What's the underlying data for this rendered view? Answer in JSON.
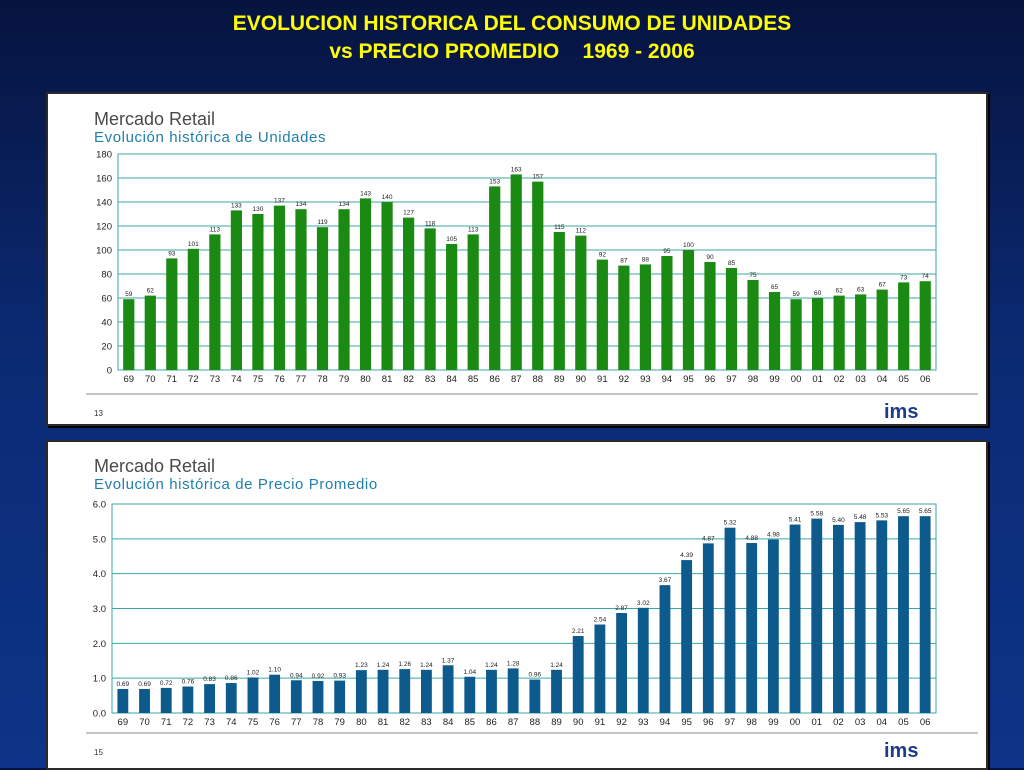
{
  "slide": {
    "title_line1": "EVOLUCION HISTORICA DEL CONSUMO DE UNIDADES",
    "title_line2": "vs PRECIO PROMEDIO    1969 - 2006"
  },
  "colors": {
    "background": "#0b2a73",
    "title": "#ffff00",
    "units_bar": "#1a8a12",
    "price_bar": "#0d5a8c",
    "panel_heading": "#4a4a4a",
    "panel_subheading": "#1f7fa8",
    "grid": "#3aa6a6",
    "logo": "#1f3c8c"
  },
  "chart_data": [
    {
      "type": "bar",
      "heading": "Mercado Retail",
      "title": "Evolución histórica de Unidades",
      "categories": [
        "69",
        "70",
        "71",
        "72",
        "73",
        "74",
        "75",
        "76",
        "77",
        "78",
        "79",
        "80",
        "81",
        "82",
        "83",
        "84",
        "85",
        "86",
        "87",
        "88",
        "89",
        "90",
        "91",
        "92",
        "93",
        "94",
        "95",
        "96",
        "97",
        "98",
        "99",
        "00",
        "01",
        "02",
        "03",
        "04",
        "05",
        "06"
      ],
      "values": [
        59,
        62,
        93,
        101,
        113,
        133,
        130,
        137,
        134,
        119,
        134,
        143,
        140,
        127,
        118,
        105,
        113,
        153,
        163,
        157,
        115,
        112,
        92,
        87,
        88,
        95,
        100,
        90,
        85,
        75,
        65,
        59,
        60,
        62,
        63,
        67,
        73,
        74
      ],
      "ylim": [
        0,
        180
      ],
      "yticks": [
        "0",
        "20",
        "40",
        "60",
        "80",
        "100",
        "120",
        "140",
        "160",
        "180"
      ],
      "grid": true,
      "footnote": "13",
      "logo": "ims"
    },
    {
      "type": "bar",
      "heading": "Mercado Retail",
      "title": "Evolución histórica de Precio Promedio",
      "categories": [
        "69",
        "70",
        "71",
        "72",
        "73",
        "74",
        "75",
        "76",
        "77",
        "78",
        "79",
        "80",
        "81",
        "82",
        "83",
        "84",
        "85",
        "86",
        "87",
        "88",
        "89",
        "90",
        "91",
        "92",
        "93",
        "94",
        "95",
        "96",
        "97",
        "98",
        "99",
        "00",
        "01",
        "02",
        "03",
        "04",
        "05",
        "06"
      ],
      "values": [
        0.69,
        0.69,
        0.72,
        0.76,
        0.83,
        0.86,
        1.02,
        1.1,
        0.94,
        0.92,
        0.93,
        1.23,
        1.24,
        1.26,
        1.24,
        1.37,
        1.04,
        1.24,
        1.28,
        0.96,
        1.24,
        2.21,
        2.54,
        2.87,
        3.02,
        3.67,
        4.39,
        4.87,
        5.32,
        4.88,
        4.98,
        5.41,
        5.58,
        5.4,
        5.48,
        5.53,
        5.65,
        5.65
      ],
      "labels": [
        "0.69",
        "0.69",
        "0.72",
        "0.76",
        "0.83",
        "0.86",
        "1.02",
        "1.10",
        "0.94",
        "0.92",
        "0.93",
        "1.23",
        "1.24",
        "1.26",
        "1.24",
        "1.37",
        "1.04",
        "1.24",
        "1.28",
        "0.96",
        "1.24",
        "2.21",
        "2.54",
        "2.87",
        "3.02",
        "3.67",
        "4.39",
        "4.87",
        "5.32",
        "4.88",
        "4.98",
        "5.41",
        "5.58",
        "5.40",
        "5.48",
        "5.53",
        "5.65",
        "5.65"
      ],
      "ylim": [
        0,
        6
      ],
      "yticks": [
        "0.0",
        "1.0",
        "2.0",
        "3.0",
        "4.0",
        "5.0",
        "6.0"
      ],
      "grid": true,
      "footnote": "15",
      "logo": "ims"
    }
  ]
}
